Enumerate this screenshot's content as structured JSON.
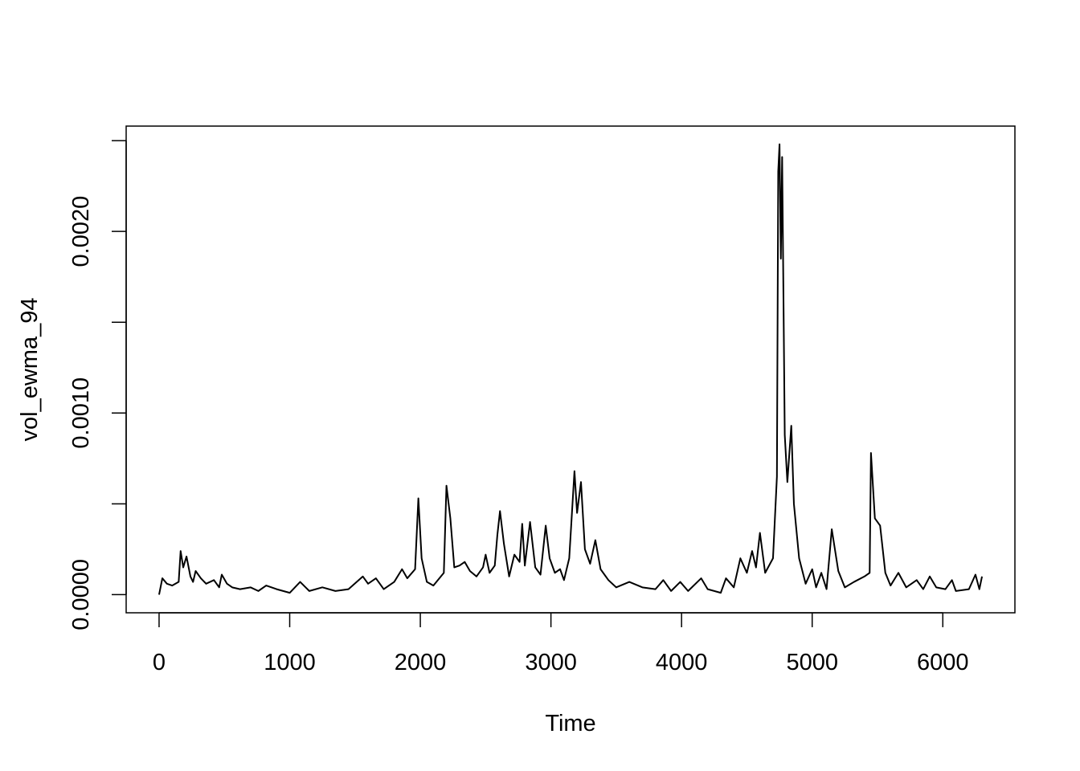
{
  "chart_data": {
    "type": "line",
    "xlabel": "Time",
    "ylabel": "vol_ewma_94",
    "color": "#000000",
    "xlim": [
      -252,
      6552
    ],
    "ylim": [
      -0.0001,
      0.00258
    ],
    "xticks": [
      0,
      1000,
      2000,
      3000,
      4000,
      5000,
      6000
    ],
    "yticks": [
      {
        "value": 0,
        "label": "0.0000"
      },
      {
        "value": 0.001,
        "label": "0.0010"
      },
      {
        "value": 0.002,
        "label": "0.0020"
      }
    ],
    "yticks_unlabeled": [
      0.0005,
      0.0015,
      0.0025
    ],
    "x": [
      0,
      25,
      60,
      100,
      150,
      165,
      185,
      210,
      240,
      260,
      280,
      320,
      360,
      420,
      460,
      480,
      520,
      560,
      620,
      700,
      760,
      820,
      900,
      1000,
      1080,
      1150,
      1250,
      1350,
      1450,
      1560,
      1600,
      1660,
      1720,
      1800,
      1860,
      1900,
      1960,
      1985,
      2010,
      2050,
      2100,
      2180,
      2200,
      2230,
      2260,
      2300,
      2340,
      2380,
      2430,
      2480,
      2500,
      2530,
      2570,
      2590,
      2610,
      2640,
      2680,
      2720,
      2760,
      2780,
      2800,
      2840,
      2880,
      2920,
      2960,
      2990,
      3030,
      3070,
      3100,
      3140,
      3180,
      3200,
      3230,
      3260,
      3300,
      3340,
      3380,
      3440,
      3500,
      3600,
      3700,
      3800,
      3860,
      3920,
      3990,
      4050,
      4150,
      4200,
      4300,
      4340,
      4400,
      4450,
      4500,
      4540,
      4570,
      4600,
      4640,
      4700,
      4730,
      4740,
      4750,
      4760,
      4770,
      4790,
      4810,
      4840,
      4860,
      4900,
      4950,
      5000,
      5030,
      5070,
      5110,
      5150,
      5200,
      5250,
      5320,
      5400,
      5440,
      5450,
      5480,
      5520,
      5560,
      5600,
      5660,
      5720,
      5800,
      5850,
      5900,
      5950,
      6020,
      6070,
      6100,
      6200,
      6250,
      6280,
      6300
    ],
    "values": [
      0,
      9e-05,
      6e-05,
      5e-05,
      7e-05,
      0.00024,
      0.00015,
      0.00021,
      0.0001,
      7e-05,
      0.00013,
      9e-05,
      6e-05,
      8e-05,
      4e-05,
      0.00011,
      6e-05,
      4e-05,
      3e-05,
      4e-05,
      2e-05,
      5e-05,
      3e-05,
      1e-05,
      7e-05,
      2e-05,
      4e-05,
      2e-05,
      3e-05,
      0.0001,
      6e-05,
      9e-05,
      3e-05,
      7e-05,
      0.00014,
      9e-05,
      0.00014,
      0.00053,
      0.0002,
      7e-05,
      5e-05,
      0.00012,
      0.0006,
      0.00042,
      0.00015,
      0.00016,
      0.00018,
      0.00013,
      0.0001,
      0.00015,
      0.00022,
      0.00012,
      0.00016,
      0.00033,
      0.00046,
      0.00028,
      0.0001,
      0.00022,
      0.00018,
      0.00039,
      0.00016,
      0.0004,
      0.00015,
      0.00011,
      0.00038,
      0.0002,
      0.00012,
      0.00014,
      8e-05,
      0.0002,
      0.00068,
      0.00045,
      0.00062,
      0.00025,
      0.00017,
      0.0003,
      0.00014,
      8e-05,
      4e-05,
      7e-05,
      4e-05,
      3e-05,
      8e-05,
      2e-05,
      7e-05,
      2e-05,
      9e-05,
      3e-05,
      1e-05,
      9e-05,
      4e-05,
      0.0002,
      0.00012,
      0.00024,
      0.00015,
      0.00034,
      0.00012,
      0.0002,
      0.00065,
      0.00233,
      0.00248,
      0.00185,
      0.00241,
      0.00088,
      0.00062,
      0.00093,
      0.0005,
      0.0002,
      6e-05,
      0.00014,
      4e-05,
      0.00012,
      3e-05,
      0.00036,
      0.00013,
      4e-05,
      7e-05,
      0.0001,
      0.00012,
      0.00078,
      0.00042,
      0.00038,
      0.00012,
      5e-05,
      0.00012,
      4e-05,
      8e-05,
      3e-05,
      0.0001,
      4e-05,
      3e-05,
      8e-05,
      2e-05,
      3e-05,
      0.00011,
      3e-05,
      0.0001
    ]
  }
}
